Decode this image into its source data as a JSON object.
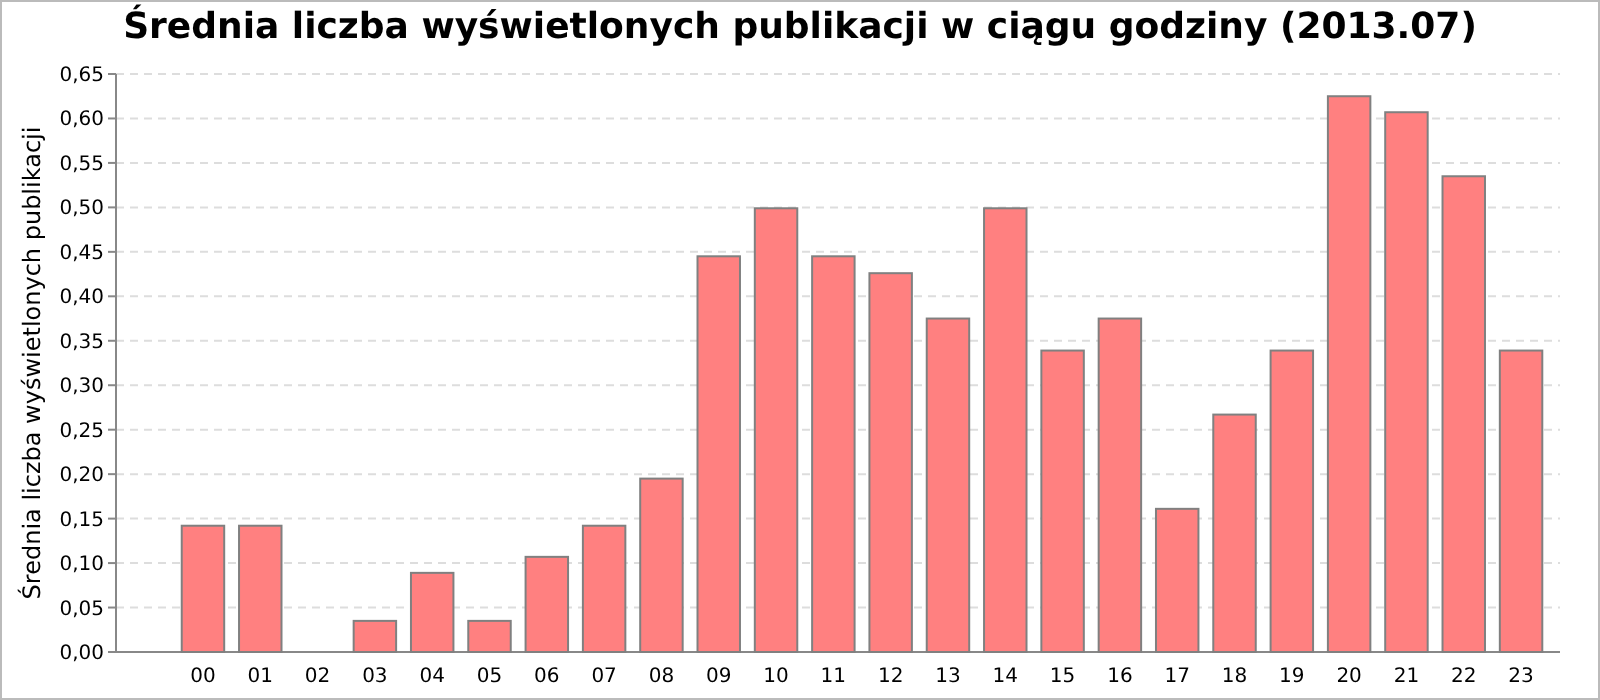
{
  "chart_data": {
    "type": "bar",
    "title": "Średnia liczba wyświetlonych publikacji w ciągu godziny (2013.07)",
    "ylabel": "Średnia liczba wyświetlonych publikacji",
    "categories": [
      "00",
      "01",
      "02",
      "03",
      "04",
      "05",
      "06",
      "07",
      "08",
      "09",
      "10",
      "11",
      "12",
      "13",
      "14",
      "15",
      "16",
      "17",
      "18",
      "19",
      "20",
      "21",
      "22",
      "23"
    ],
    "values": [
      0.142,
      0.142,
      0,
      0.035,
      0.089,
      0.035,
      0.107,
      0.142,
      0.195,
      0.445,
      0.499,
      0.445,
      0.426,
      0.375,
      0.499,
      0.339,
      0.375,
      0.161,
      0.267,
      0.339,
      0.625,
      0.607,
      0.535,
      0.339
    ],
    "color": "#ff8080",
    "ylim": [
      0,
      0.65
    ],
    "yticks": [
      {
        "value": 0,
        "label": "0,00"
      },
      {
        "value": 0.05,
        "label": "0,05"
      },
      {
        "value": 0.1,
        "label": "0,10"
      },
      {
        "value": 0.15,
        "label": "0,15"
      },
      {
        "value": 0.2,
        "label": "0,20"
      },
      {
        "value": 0.25,
        "label": "0,25"
      },
      {
        "value": 0.3,
        "label": "0,30"
      },
      {
        "value": 0.35,
        "label": "0,35"
      },
      {
        "value": 0.4,
        "label": "0,40"
      },
      {
        "value": 0.45,
        "label": "0,45"
      },
      {
        "value": 0.5,
        "label": "0,50"
      },
      {
        "value": 0.55,
        "label": "0,55"
      },
      {
        "value": 0.6,
        "label": "0,60"
      },
      {
        "value": 0.65,
        "label": "0,65"
      }
    ],
    "grid": "y"
  }
}
